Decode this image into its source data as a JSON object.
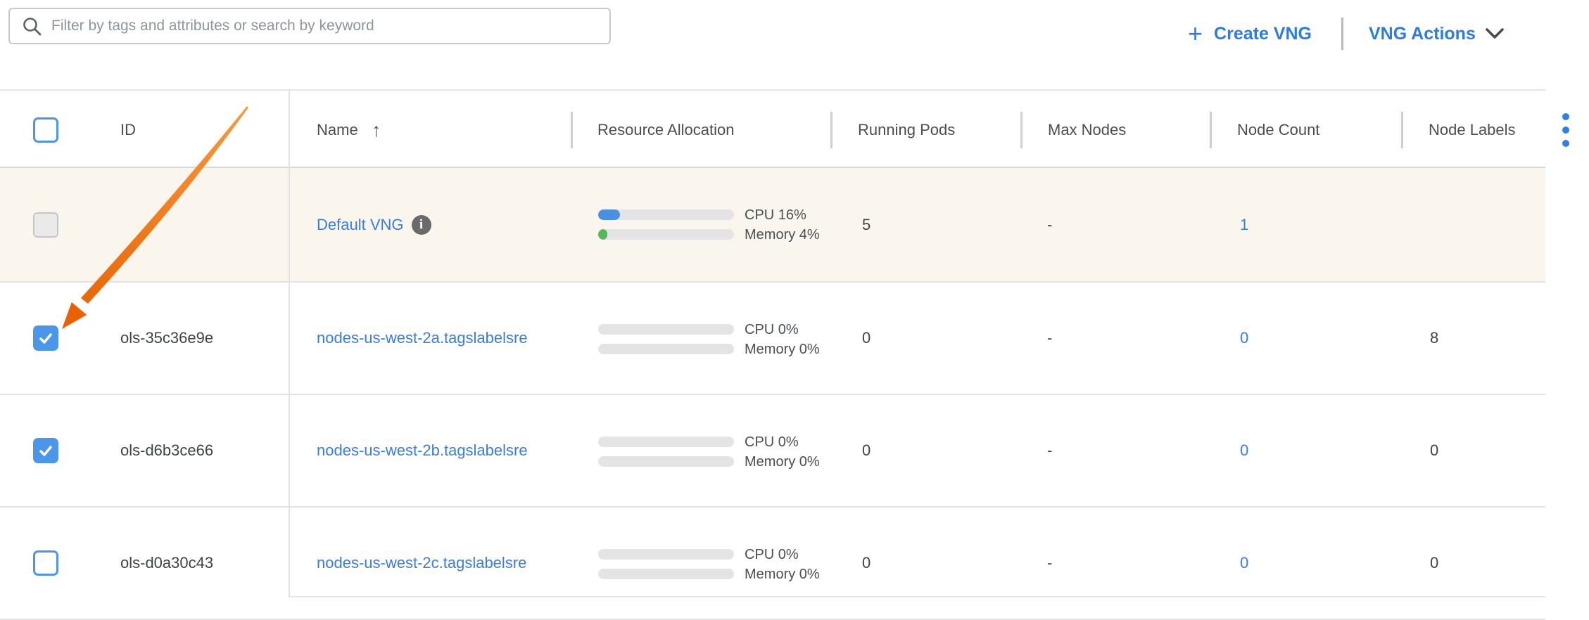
{
  "toolbar": {
    "search_placeholder": "Filter by tags and attributes or search by keyword",
    "create_vng_label": "Create VNG",
    "vng_actions_label": "VNG Actions",
    "plus_glyph": "+"
  },
  "icons": {
    "search": "magnifier-icon",
    "create": "plus-icon",
    "vng_actions": "chevron-down-icon",
    "name_sort": "arrow-up-sort-ascending-icon",
    "row_info": "info-circle-icon",
    "header_menu": "vertical-three-dots-kebab-icon"
  },
  "table": {
    "columns": {
      "id": "ID",
      "name": "Name",
      "resource_allocation": "Resource Allocation",
      "running_pods": "Running Pods",
      "max_nodes": "Max Nodes",
      "node_count": "Node Count",
      "node_labels": "Node Labels"
    },
    "sort": {
      "column": "Name",
      "direction": "ascending",
      "glyph": "↑"
    },
    "rows": [
      {
        "id": "",
        "name": "Default VNG",
        "info": true,
        "highlighted": true,
        "checkbox": "disabled",
        "cpu_pct": 16,
        "cpu_label": "CPU 16%",
        "mem_pct": 4,
        "mem_label": "Memory 4%",
        "running_pods": "5",
        "max_nodes": "-",
        "node_count": "1",
        "node_labels": ""
      },
      {
        "id": "ols-35c36e9e",
        "name": "nodes-us-west-2a.tagslabelsre",
        "info": false,
        "highlighted": false,
        "checkbox": "checked",
        "cpu_pct": 0,
        "cpu_label": "CPU 0%",
        "mem_pct": 0,
        "mem_label": "Memory 0%",
        "running_pods": "0",
        "max_nodes": "-",
        "node_count": "0",
        "node_labels": "8"
      },
      {
        "id": "ols-d6b3ce66",
        "name": "nodes-us-west-2b.tagslabelsre",
        "info": false,
        "highlighted": false,
        "checkbox": "checked",
        "cpu_pct": 0,
        "cpu_label": "CPU 0%",
        "mem_pct": 0,
        "mem_label": "Memory 0%",
        "running_pods": "0",
        "max_nodes": "-",
        "node_count": "0",
        "node_labels": "0"
      },
      {
        "id": "ols-d0a30c43",
        "name": "nodes-us-west-2c.tagslabelsre",
        "info": false,
        "highlighted": false,
        "checkbox": "unchecked",
        "cpu_pct": 0,
        "cpu_label": "CPU 0%",
        "mem_pct": 0,
        "mem_label": "Memory 0%",
        "running_pods": "0",
        "max_nodes": "-",
        "node_count": "0",
        "node_labels": "0"
      }
    ]
  },
  "annotation": {
    "shape": "tapered-arrow",
    "color": "#ec6d05",
    "points_to": "checkbox of row ols-35c36e9e"
  },
  "colors": {
    "action_blue": "#2d7be5",
    "link_blue": "#3a7de2",
    "checkbox_blue": "#4a96ea",
    "bar_blue": "#4a90e2",
    "bar_green": "#56b65c",
    "row_highlight": "#faf6ee",
    "arrow_orange": "#ec6d05",
    "kebab_blue": "#2f7fe8",
    "info_gray": "#6a6a6a"
  }
}
